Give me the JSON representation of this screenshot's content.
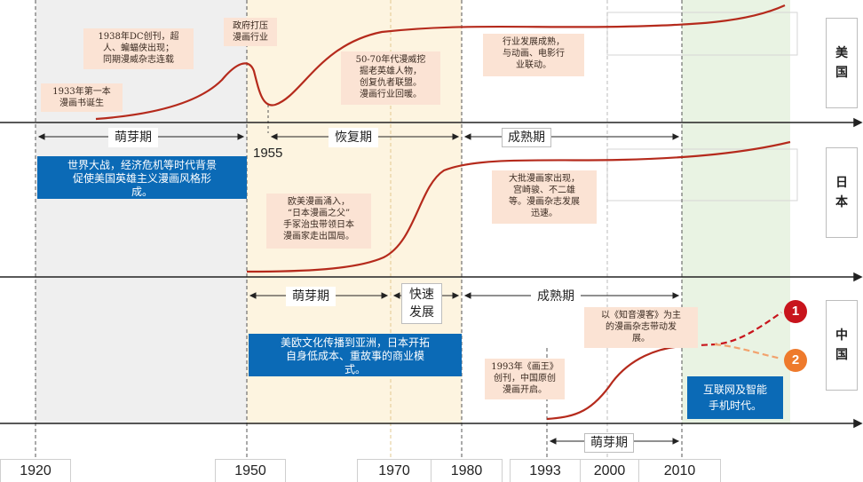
{
  "countries": {
    "usa": "美\n国",
    "japan": "日\n本",
    "china": "中\n国"
  },
  "years": [
    "1920",
    "1950",
    "1970",
    "1980",
    "1993",
    "2000",
    "2010"
  ],
  "year_marker_1955": "1955",
  "usa": {
    "note_1933": "1933年第一本\n漫画书诞生",
    "note_1938": "1938年DC创刊，超\n人、蝙蝠侠出现；\n同期漫威杂志连载",
    "note_suppress": "政府打压\n漫画行业",
    "note_5070": "50-70年代漫威挖\n掘老英雄人物，\n创复仇者联盟。\n漫画行业回暖。",
    "note_mature": "行业发展成熟，\n与动画、电影行\n业联动。",
    "phase_sprout": "萌芽期",
    "phase_recovery": "恢复期",
    "phase_mature": "成熟期",
    "blue_note": "世界大战，经济危机等时代背景\n促使美国英雄主义漫画风格形\n成。"
  },
  "japan": {
    "note_influx": "欧美漫画涌入，\n“日本漫画之父”\n手冢治虫带领日本\n漫画家走出国局。",
    "note_masters": "大批漫画家出现，\n宫崎骏、不二雄\n等。漫画杂志发展\n迅速。",
    "phase_sprout": "萌芽期",
    "phase_fast": "快速\n发展",
    "phase_mature": "成熟期",
    "blue_note": "美欧文化传播到亚洲，日本开拓\n自身低成本、重故事的商业模\n式。"
  },
  "china": {
    "note_1993": "1993年《画王》\n创刊，中国原创\n漫画开启。",
    "note_zhiyin": "以《知音漫客》为主\n的漫画杂志带动发\n展。",
    "phase_sprout": "萌芽期",
    "blue_note": "互联网及智能\n手机时代。",
    "badge_1": "1",
    "badge_2": "2"
  },
  "colors": {
    "curve": "#b52a1c",
    "note_bg": "#fbe3d4",
    "blue_bg": "#0b6ab6",
    "badge_1": "#c8141c",
    "badge_2": "#ee7a2c",
    "band_gray": "#efefef",
    "band_yellow": "#fdf4e0",
    "band_green": "#e9f3e3"
  }
}
